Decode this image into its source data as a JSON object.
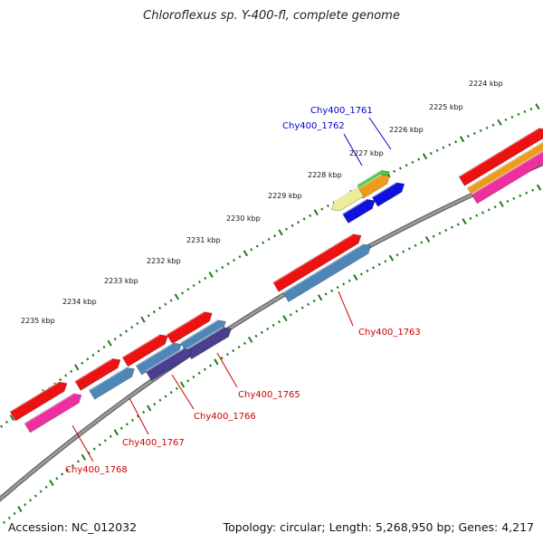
{
  "title": "Chloroflexus sp. Y-400-fl, complete genome",
  "footer": {
    "accession": "Accession: NC_012032",
    "stats": "Topology: circular; Length: 5,268,950 bp; Genes: 4,217"
  },
  "colors": {
    "backbone": "#7a7a7a",
    "scale_ticks": "#1a7a1a",
    "label_blue": "#0000cc",
    "label_red": "#cc0000",
    "red": "#ee1111",
    "pink": "#ee2fa0",
    "steelblue": "#4f86b8",
    "indigo": "#4a3f8f",
    "blue": "#1111dd",
    "yellow": "#ecec9a",
    "green": "#44cc44",
    "orange": "#ee9a1a",
    "gray": "#b8b8b8"
  },
  "scale": [
    {
      "kbp": 2224,
      "label": "2224 kbp"
    },
    {
      "kbp": 2225,
      "label": "2225 kbp"
    },
    {
      "kbp": 2226,
      "label": "2226 kbp"
    },
    {
      "kbp": 2227,
      "label": "2227 kbp"
    },
    {
      "kbp": 2228,
      "label": "2228 kbp"
    },
    {
      "kbp": 2229,
      "label": "2229 kbp"
    },
    {
      "kbp": 2230,
      "label": "2230 kbp"
    },
    {
      "kbp": 2231,
      "label": "2231 kbp"
    },
    {
      "kbp": 2232,
      "label": "2232 kbp"
    },
    {
      "kbp": 2233,
      "label": "2233 kbp"
    },
    {
      "kbp": 2234,
      "label": "2234 kbp"
    },
    {
      "kbp": 2235,
      "label": "2235 kbp"
    }
  ],
  "gene_labels": [
    {
      "text": "Chy400_1761",
      "color": "blue"
    },
    {
      "text": "Chy400_1762",
      "color": "blue"
    },
    {
      "text": "Chy400_1763",
      "color": "red"
    },
    {
      "text": "Chy400_1765",
      "color": "red"
    },
    {
      "text": "Chy400_1766",
      "color": "red"
    },
    {
      "text": "Chy400_1767",
      "color": "red"
    },
    {
      "text": "Chy400_1768",
      "color": "red"
    }
  ]
}
